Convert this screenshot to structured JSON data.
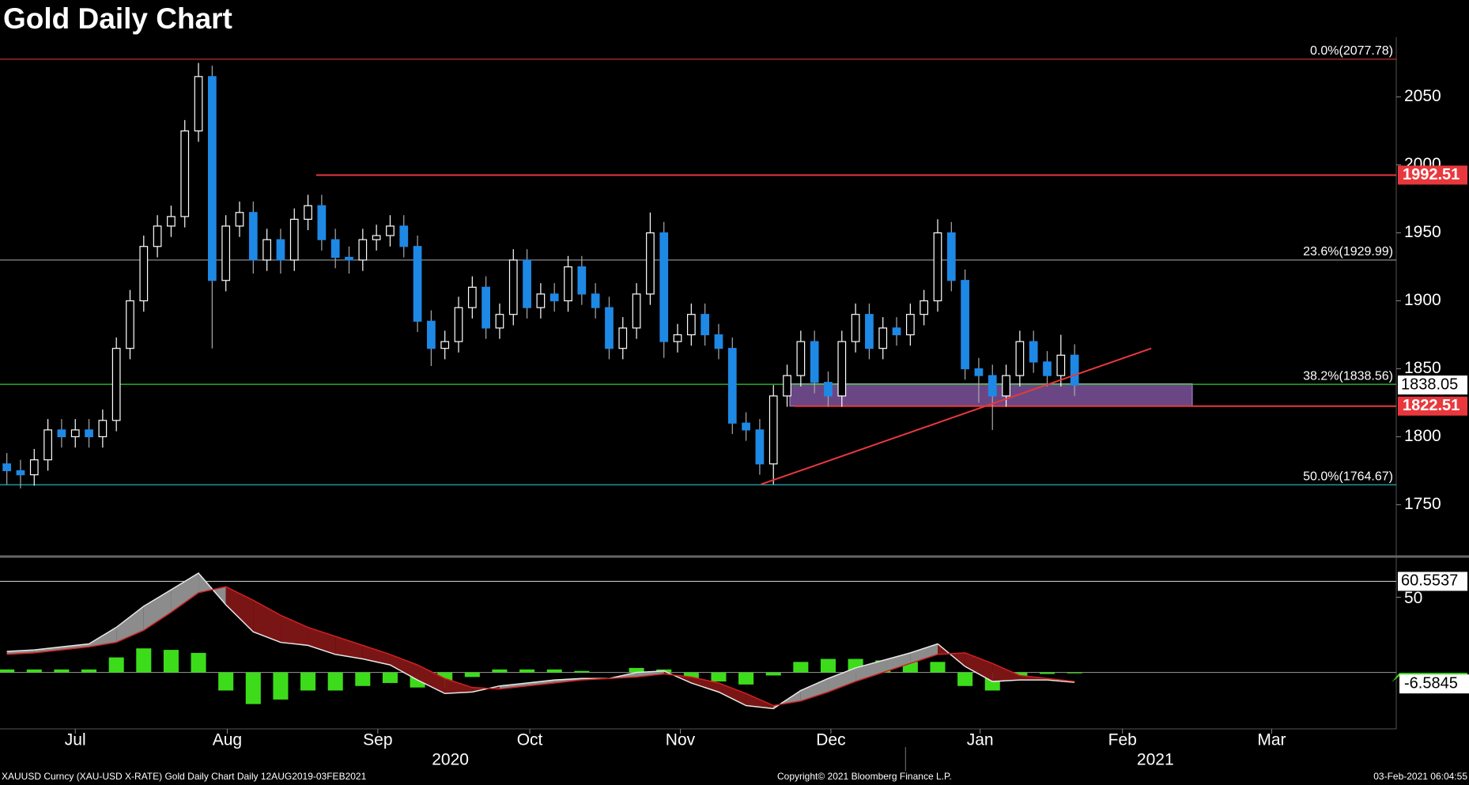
{
  "chart_data": [
    {
      "type": "candlestick",
      "title": "Gold Daily Chart",
      "open": [
        1780,
        1775,
        1772,
        1783,
        1805,
        1800,
        1805,
        1800,
        1812,
        1865,
        1900,
        1940,
        1955,
        1962,
        2025,
        2065,
        1915,
        1955,
        1965,
        1930,
        1945,
        1930,
        1960,
        1970,
        1945,
        1932,
        1930,
        1945,
        1948,
        1955,
        1940,
        1885,
        1865,
        1870,
        1895,
        1910,
        1880,
        1890,
        1930,
        1895,
        1905,
        1900,
        1925,
        1905,
        1895,
        1865,
        1880,
        1905,
        1950,
        1870,
        1875,
        1890,
        1875,
        1865,
        1810,
        1805,
        1780,
        1830,
        1845,
        1870,
        1840,
        1830,
        1870,
        1890,
        1865,
        1880,
        1875,
        1890,
        1900,
        1950,
        1915,
        1850,
        1845,
        1830,
        1845,
        1870,
        1855,
        1845,
        1860
      ],
      "high": [
        1788,
        1783,
        1791,
        1813,
        1813,
        1813,
        1813,
        1820,
        1873,
        1908,
        1948,
        1963,
        1970,
        2033,
        2075,
        2073,
        1963,
        1973,
        1973,
        1953,
        1953,
        1968,
        1978,
        1978,
        1953,
        1940,
        1953,
        1956,
        1963,
        1963,
        1948,
        1893,
        1878,
        1903,
        1918,
        1918,
        1898,
        1938,
        1938,
        1913,
        1913,
        1933,
        1933,
        1913,
        1903,
        1888,
        1913,
        1965,
        1958,
        1883,
        1898,
        1898,
        1883,
        1873,
        1818,
        1813,
        1838,
        1853,
        1878,
        1878,
        1848,
        1878,
        1898,
        1898,
        1888,
        1888,
        1898,
        1908,
        1960,
        1958,
        1923,
        1858,
        1853,
        1853,
        1878,
        1878,
        1863,
        1875,
        1868
      ],
      "low": [
        1765,
        1762,
        1764,
        1775,
        1792,
        1792,
        1792,
        1792,
        1804,
        1857,
        1892,
        1932,
        1947,
        1954,
        2017,
        1865,
        1907,
        1947,
        1920,
        1922,
        1920,
        1922,
        1952,
        1937,
        1924,
        1920,
        1922,
        1937,
        1940,
        1932,
        1877,
        1852,
        1857,
        1862,
        1887,
        1872,
        1872,
        1882,
        1887,
        1887,
        1892,
        1892,
        1897,
        1887,
        1857,
        1857,
        1872,
        1897,
        1858,
        1862,
        1867,
        1867,
        1857,
        1802,
        1797,
        1772,
        1765,
        1822,
        1837,
        1832,
        1822,
        1822,
        1862,
        1857,
        1857,
        1867,
        1867,
        1882,
        1892,
        1907,
        1842,
        1825,
        1805,
        1822,
        1837,
        1847,
        1837,
        1837,
        1830
      ],
      "close": [
        1775,
        1772,
        1783,
        1805,
        1800,
        1805,
        1800,
        1812,
        1865,
        1900,
        1940,
        1955,
        1962,
        2025,
        2065,
        1915,
        1955,
        1965,
        1930,
        1945,
        1930,
        1960,
        1970,
        1945,
        1932,
        1930,
        1945,
        1948,
        1955,
        1940,
        1885,
        1865,
        1870,
        1895,
        1910,
        1880,
        1890,
        1930,
        1895,
        1905,
        1900,
        1925,
        1905,
        1895,
        1865,
        1880,
        1905,
        1950,
        1870,
        1875,
        1890,
        1875,
        1865,
        1810,
        1805,
        1780,
        1830,
        1845,
        1870,
        1840,
        1830,
        1870,
        1890,
        1865,
        1880,
        1875,
        1890,
        1900,
        1950,
        1915,
        1850,
        1845,
        1830,
        1845,
        1870,
        1855,
        1845,
        1860,
        1838.05
      ],
      "up_color": "#ffffff",
      "down_color": "#1e88e5",
      "xlim": [
        0,
        102
      ],
      "xticks": [
        {
          "value": 5.5,
          "label": "Jul"
        },
        {
          "value": 16.6,
          "label": "Aug"
        },
        {
          "value": 27.6,
          "label": "Sep"
        },
        {
          "value": 38.7,
          "label": "Oct"
        },
        {
          "value": 49.7,
          "label": "Nov"
        },
        {
          "value": 60.7,
          "label": "Dec"
        },
        {
          "value": 71.6,
          "label": "Jan"
        },
        {
          "value": 82,
          "label": "Feb"
        },
        {
          "value": 92.9,
          "label": "Mar"
        }
      ],
      "year_labels": [
        {
          "value": 32.9,
          "label": "2020"
        },
        {
          "value": 84.4,
          "label": "2021"
        }
      ],
      "ylim": [
        1713,
        2094
      ],
      "yticks": [
        1750,
        1800,
        1850,
        1900,
        1950,
        2000,
        2050
      ],
      "fib_levels": [
        {
          "label": "0.0%(2077.78)",
          "value": 2077.78,
          "color": "#c0302a"
        },
        {
          "label": "23.6%(1929.99)",
          "value": 1929.99,
          "color": "#9a9a9a"
        },
        {
          "label": "38.2%(1838.56)",
          "value": 1838.56,
          "color": "#33cc33"
        },
        {
          "label": "50.0%(1764.67)",
          "value": 1764.67,
          "color": "#2ac4c4"
        }
      ],
      "price_lines": [
        {
          "value": 1992.51,
          "start": 23.1,
          "color": "#e8383d"
        },
        {
          "value": 1822.51,
          "start": 58,
          "color": "#e8383d"
        }
      ],
      "last_price": 1838.05,
      "zone": {
        "x": [
          57.7,
          87.1
        ],
        "y": [
          1822.51,
          1839
        ],
        "color": "#8e5fb0"
      },
      "trendline": {
        "x": [
          55.6,
          84.1
        ],
        "y": [
          1765,
          1865
        ],
        "color": "#e8383d"
      }
    },
    {
      "type": "macd",
      "x": [
        0,
        2,
        4,
        6,
        8,
        10,
        12,
        14,
        16,
        18,
        20,
        22,
        24,
        26,
        28,
        30,
        32,
        34,
        36,
        38,
        40,
        42,
        44,
        46,
        48,
        50,
        52,
        54,
        56,
        58,
        60,
        62,
        64,
        66,
        68,
        70,
        72,
        74,
        76,
        78
      ],
      "lines": [
        {
          "color": "#e8e8e8",
          "values": [
            14,
            15,
            17,
            19,
            30,
            44,
            55,
            66,
            45,
            27,
            20,
            18,
            12,
            9,
            5,
            -5,
            -14,
            -13,
            -9,
            -7,
            -5,
            -4,
            -4,
            0,
            1,
            -7,
            -13,
            -22,
            -24,
            -12,
            -4,
            3,
            8,
            13,
            19,
            4,
            -6,
            -5,
            -5,
            -6.5845
          ]
        },
        {
          "color": "#d02020",
          "values": [
            12,
            13,
            15,
            17,
            20,
            28,
            40,
            53,
            57,
            48,
            38,
            30,
            24,
            18,
            12,
            5,
            -4,
            -10,
            -11,
            -9,
            -7,
            -5,
            -4,
            -3,
            -1,
            -3,
            -7,
            -14,
            -22,
            -19,
            -13,
            -6,
            0,
            6,
            12,
            13,
            6,
            -2,
            -4,
            -6
          ]
        }
      ],
      "histogram": {
        "color": "#3ddc1b",
        "values": [
          2,
          2,
          2,
          2,
          10,
          16,
          15,
          13,
          -12,
          -21,
          -18,
          -12,
          -12,
          -9,
          -7,
          -10,
          -10,
          -3,
          2,
          2,
          2,
          1,
          0,
          3,
          2,
          -4,
          -6,
          -8,
          -2,
          7,
          9,
          9,
          8,
          7,
          7,
          -9,
          -12,
          -3,
          -1,
          -0.58
        ]
      },
      "ylim": [
        -37.5,
        76
      ],
      "yticks": [
        50
      ],
      "reference_line": 60.5537,
      "last_value": -6.5845
    }
  ],
  "footer": {
    "left": "XAUUSD Curncy (XAU-USD X-RATE) Gold Daily Chart  Daily 12AUG2019-03FEB2021",
    "center": "Copyright© 2021 Bloomberg Finance L.P.",
    "right": "03-Feb-2021 06:04:55"
  }
}
